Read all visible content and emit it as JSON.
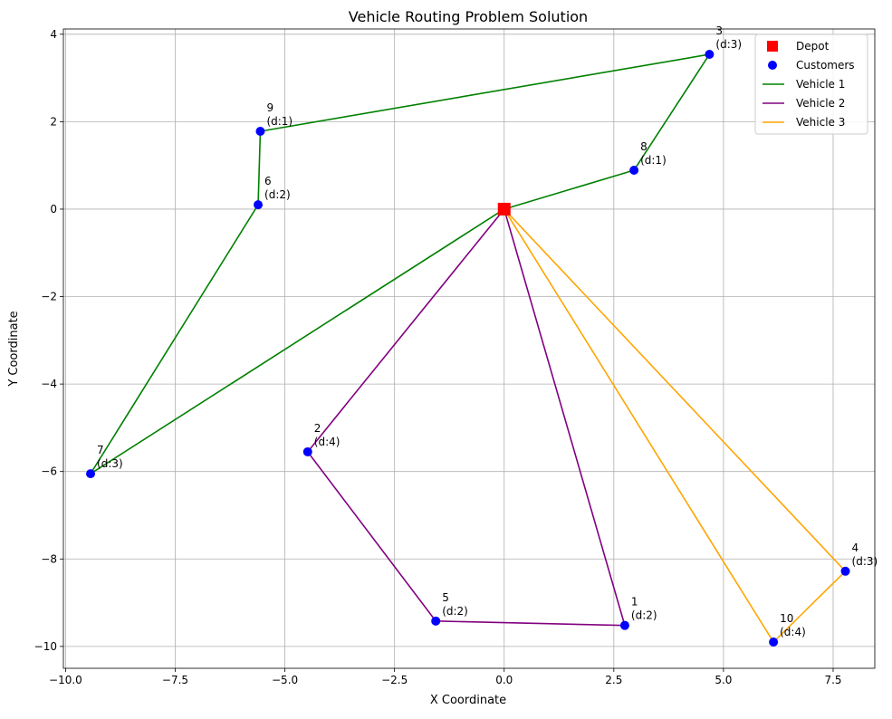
{
  "chart_data": {
    "type": "scatter",
    "title": "Vehicle Routing Problem Solution",
    "xlabel": "X Coordinate",
    "ylabel": "Y Coordinate",
    "xlim": [
      -10.05,
      8.45
    ],
    "ylim": [
      -10.5,
      4.12
    ],
    "grid": true,
    "xticks": [
      -10.0,
      -7.5,
      -5.0,
      -2.5,
      0.0,
      2.5,
      5.0,
      7.5
    ],
    "xtick_labels": [
      "−10.0",
      "−7.5",
      "−5.0",
      "−2.5",
      "0.0",
      "2.5",
      "5.0",
      "7.5"
    ],
    "yticks": [
      4,
      2,
      0,
      -2,
      -4,
      -6,
      -8,
      -10
    ],
    "ytick_labels": [
      "4",
      "2",
      "0",
      "−2",
      "−4",
      "−6",
      "−8",
      "−10"
    ],
    "legend_position": "top-right",
    "legend": [
      {
        "label": "Depot",
        "kind": "square",
        "color": "#ff0000"
      },
      {
        "label": "Customers",
        "kind": "circle",
        "color": "#0000ff"
      },
      {
        "label": "Vehicle 1",
        "kind": "line",
        "color": "#008000"
      },
      {
        "label": "Vehicle 2",
        "kind": "line",
        "color": "#800080"
      },
      {
        "label": "Vehicle 3",
        "kind": "line",
        "color": "#ffa500"
      }
    ],
    "depot": {
      "x": 0,
      "y": 0,
      "color": "#ff0000"
    },
    "customers": [
      {
        "id": "1",
        "x": 2.75,
        "y": -9.52,
        "demand_label": "(d:2)"
      },
      {
        "id": "2",
        "x": -4.48,
        "y": -5.55,
        "demand_label": "(d:4)"
      },
      {
        "id": "3",
        "x": 4.68,
        "y": 3.54,
        "demand_label": "(d:3)"
      },
      {
        "id": "4",
        "x": 7.78,
        "y": -8.28,
        "demand_label": "(d:3)"
      },
      {
        "id": "5",
        "x": -1.56,
        "y": -9.42,
        "demand_label": "(d:2)"
      },
      {
        "id": "6",
        "x": -5.61,
        "y": 0.1,
        "demand_label": "(d:2)"
      },
      {
        "id": "7",
        "x": -9.43,
        "y": -6.05,
        "demand_label": "(d:3)"
      },
      {
        "id": "8",
        "x": 2.96,
        "y": 0.89,
        "demand_label": "(d:1)"
      },
      {
        "id": "9",
        "x": -5.56,
        "y": 1.78,
        "demand_label": "(d:1)"
      },
      {
        "id": "10",
        "x": 6.14,
        "y": -9.9,
        "demand_label": "(d:4)"
      }
    ],
    "customer_color": "#0000ff",
    "series": [
      {
        "name": "Vehicle 1",
        "color": "#008000",
        "route": [
          "0",
          "8",
          "3",
          "9",
          "6",
          "7",
          "0"
        ]
      },
      {
        "name": "Vehicle 2",
        "color": "#800080",
        "route": [
          "0",
          "2",
          "5",
          "1",
          "0"
        ]
      },
      {
        "name": "Vehicle 3",
        "color": "#ffa500",
        "route": [
          "0",
          "10",
          "4",
          "0"
        ]
      }
    ]
  }
}
